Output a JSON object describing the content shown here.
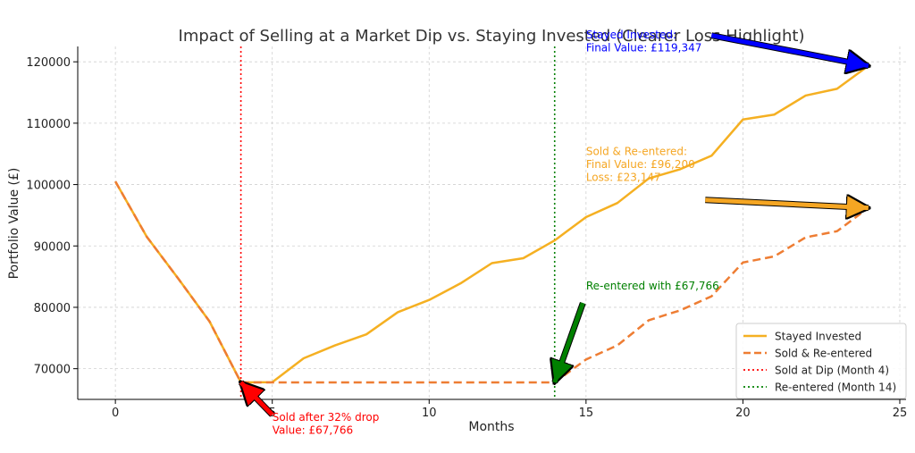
{
  "chart_data": {
    "type": "line",
    "title": "Impact of Selling at a Market Dip vs. Staying Invested (Clearer Loss Highlight)",
    "xlabel": "Months",
    "ylabel": "Portfolio Value (£)",
    "xlim": [
      -1.2,
      25.2
    ],
    "ylim": [
      65000,
      122500
    ],
    "xticks": [
      0,
      5,
      10,
      15,
      20,
      25
    ],
    "xtick_labels": [
      "0",
      "5",
      "10",
      "15",
      "20",
      "25"
    ],
    "yticks": [
      70000,
      80000,
      90000,
      100000,
      110000,
      120000
    ],
    "ytick_labels": [
      "70000",
      "80000",
      "90000",
      "100000",
      "110000",
      "120000"
    ],
    "grid": true,
    "legend_position": "lower-right",
    "series": [
      {
        "name": "Stayed Invested",
        "color": "#f5b022",
        "style": "solid",
        "x": [
          0,
          1,
          2,
          3,
          4,
          5,
          6,
          7,
          8,
          9,
          10,
          11,
          12,
          13,
          14,
          15,
          16,
          17,
          18,
          19,
          20,
          21,
          22,
          23,
          24
        ],
        "y": [
          100500,
          91500,
          84700,
          77700,
          67766,
          67800,
          71700,
          73800,
          75600,
          79200,
          81200,
          83900,
          87200,
          88000,
          90900,
          94700,
          97000,
          101000,
          102500,
          104700,
          110600,
          111400,
          114500,
          115600,
          119347
        ]
      },
      {
        "name": "Sold & Re-entered",
        "color": "#ee7d33",
        "style": "dashed",
        "x": [
          0,
          1,
          2,
          3,
          4,
          5,
          6,
          7,
          8,
          9,
          10,
          11,
          12,
          13,
          14,
          15,
          16,
          17,
          18,
          19,
          20,
          21,
          22,
          23,
          24
        ],
        "y": [
          100500,
          91500,
          84700,
          77700,
          67766,
          67766,
          67766,
          67766,
          67766,
          67766,
          67766,
          67766,
          67766,
          67766,
          67766,
          71500,
          73800,
          77900,
          79500,
          81800,
          87300,
          88300,
          91400,
          92400,
          96200
        ]
      }
    ],
    "vlines": [
      {
        "name": "Sold at Dip (Month 4)",
        "x": 4,
        "color": "#ff0000"
      },
      {
        "name": "Re-entered (Month 14)",
        "x": 14,
        "color": "#008000"
      }
    ],
    "annotations": [
      {
        "id": "stayed",
        "lines": [
          "Stayed Invested:",
          "Final Value: £119,347"
        ],
        "color": "#0000ff",
        "arrow_from": [
          19,
          124300
        ],
        "arrow_to": [
          24,
          119347
        ],
        "text_at": [
          15,
          123800
        ]
      },
      {
        "id": "sold",
        "lines": [
          "Sold & Re-entered:",
          "Final Value: £96,200",
          "Loss: £23,147"
        ],
        "color": "#f5a623",
        "arrow_from": [
          18.8,
          97500
        ],
        "arrow_to": [
          24,
          96200
        ],
        "text_at": [
          15,
          104800
        ]
      },
      {
        "id": "reentered",
        "lines": [
          "Re-entered with £67,766"
        ],
        "color": "#008000",
        "arrow_from": [
          14.9,
          80700
        ],
        "arrow_to": [
          14,
          67766
        ],
        "text_at": [
          15,
          82900
        ]
      },
      {
        "id": "soldpt",
        "lines": [
          "Sold after 32% drop",
          "Value: £67,766"
        ],
        "color": "#ff0000",
        "arrow_from": [
          5,
          62500
        ],
        "arrow_to": [
          4,
          67766
        ],
        "text_at": [
          5,
          61500
        ]
      }
    ]
  }
}
